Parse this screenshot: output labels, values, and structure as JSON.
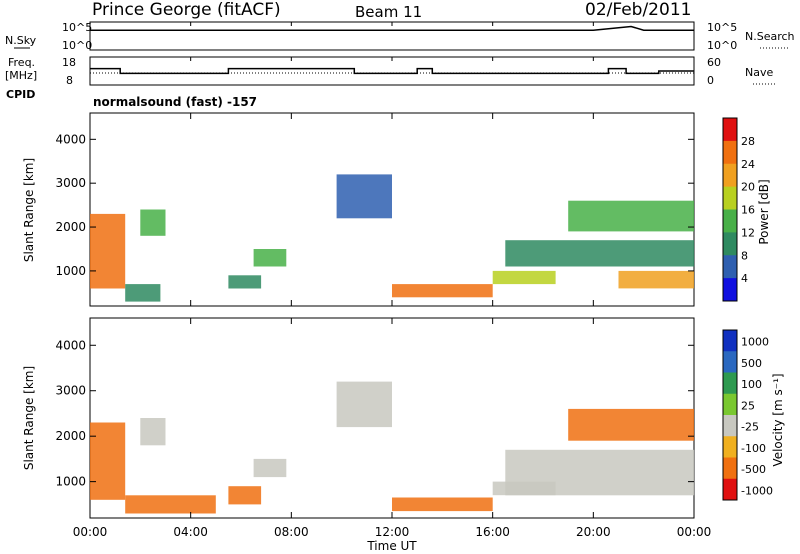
{
  "header": {
    "station": "Prince George (fitACF)",
    "beam": "Beam 11",
    "date": "02/Feb/2011"
  },
  "colors": {
    "power_scale": [
      "#1010e0",
      "#2e5fb0",
      "#2e8a60",
      "#48b048",
      "#b8d020",
      "#f0a020",
      "#f07010",
      "#e01010"
    ],
    "velocity_scale": [
      "#1030c0",
      "#2a68c0",
      "#2e9a50",
      "#7ac830",
      "#c8c8c0",
      "#f0b020",
      "#f07010",
      "#e01010"
    ]
  },
  "labels": {
    "nsky": "N.Sky",
    "nsearch": "N.Search",
    "freq": "Freq.",
    "mhz": "[MHz]",
    "nave": "Nave",
    "cpid": "CPID",
    "mode": "normalsound (fast) -157",
    "time_axis": "Time UT"
  },
  "chart_data": [
    {
      "type": "line",
      "title": "N.Sky / N.Search",
      "ylabel_left": "N.Sky",
      "ylabel_right": "N.Search",
      "yticks_left": [
        "10^5",
        "10^0"
      ],
      "yticks_right": [
        "10^5",
        "10^0"
      ],
      "series": [
        {
          "name": "N.Sky",
          "x": [
            0,
            2,
            4,
            6,
            8,
            10,
            12,
            14,
            16,
            18,
            20,
            21.5,
            22,
            24
          ],
          "y": [
            5000,
            5000,
            5000,
            5000,
            5000,
            5000,
            5000,
            5000,
            5000,
            5000,
            5000,
            30000,
            5000,
            5000
          ]
        }
      ]
    },
    {
      "type": "line",
      "title": "Freq / Nave",
      "ylabel": "Freq. [MHz]",
      "ylabel_right": "Nave",
      "yticks_left": [
        "18",
        "8"
      ],
      "yticks_right": [
        "60",
        "0"
      ],
      "ylim": [
        8,
        18
      ],
      "series": [
        {
          "name": "Freq.",
          "x": [
            0,
            1.2,
            1.2,
            5.5,
            5.5,
            10.5,
            10.5,
            13.0,
            13.0,
            13.6,
            13.6,
            20.6,
            20.6,
            21.3,
            21.3,
            22.6,
            22.6,
            24
          ],
          "y": [
            14,
            14,
            12,
            12,
            14,
            14,
            12,
            12,
            14,
            14,
            12,
            12,
            14,
            14,
            12,
            12,
            13,
            13
          ]
        },
        {
          "name": "Nave",
          "x": [
            0,
            24
          ],
          "y": [
            25,
            25
          ]
        }
      ]
    },
    {
      "type": "heatmap",
      "quantity": "Power",
      "unit": "dB",
      "colorbar_ticks": [
        "4",
        "8",
        "12",
        "16",
        "20",
        "24",
        "28"
      ],
      "colorbar_label": "Power [dB]",
      "x": [
        "00:00",
        "04:00",
        "08:00",
        "12:00",
        "16:00",
        "20:00",
        "00:00"
      ],
      "ylabel": "Slant Range [km]",
      "yticks": [
        "1000",
        "2000",
        "3000",
        "4000"
      ],
      "ylim": [
        200,
        4600
      ],
      "xlim": [
        0,
        24
      ],
      "bands": [
        {
          "t": [
            0,
            1.4
          ],
          "r": [
            600,
            2300
          ],
          "value": 26
        },
        {
          "t": [
            1.4,
            2.8
          ],
          "r": [
            300,
            700
          ],
          "value": 8
        },
        {
          "t": [
            2.0,
            3.0
          ],
          "r": [
            1800,
            2400
          ],
          "value": 12
        },
        {
          "t": [
            5.5,
            6.8
          ],
          "r": [
            600,
            900
          ],
          "value": 10
        },
        {
          "t": [
            6.5,
            7.8
          ],
          "r": [
            1100,
            1500
          ],
          "value": 12
        },
        {
          "t": [
            9.8,
            12.0
          ],
          "r": [
            2200,
            3200
          ],
          "value": 6
        },
        {
          "t": [
            12.0,
            16.0
          ],
          "r": [
            400,
            700
          ],
          "value": 24
        },
        {
          "t": [
            16.0,
            18.5
          ],
          "r": [
            700,
            1000
          ],
          "value": 18
        },
        {
          "t": [
            16.5,
            24.0
          ],
          "r": [
            1100,
            1700
          ],
          "value": 8
        },
        {
          "t": [
            19.0,
            24.0
          ],
          "r": [
            1900,
            2600
          ],
          "value": 14
        },
        {
          "t": [
            21.0,
            24.0
          ],
          "r": [
            600,
            1000
          ],
          "value": 20
        }
      ]
    },
    {
      "type": "heatmap",
      "quantity": "Velocity",
      "unit": "m s-1",
      "colorbar_ticks": [
        "1000",
        "500",
        "100",
        "25",
        "-25",
        "-100",
        "-500",
        "-1000"
      ],
      "colorbar_label": "Velocity [m s⁻¹]",
      "x": [
        "00:00",
        "04:00",
        "08:00",
        "12:00",
        "16:00",
        "20:00",
        "00:00"
      ],
      "ylabel": "Slant Range [km]",
      "yticks": [
        "1000",
        "2000",
        "3000",
        "4000"
      ],
      "ylim": [
        200,
        4600
      ],
      "xlim": [
        0,
        24
      ],
      "bands": [
        {
          "t": [
            0,
            1.4
          ],
          "r": [
            600,
            2300
          ],
          "value": -300
        },
        {
          "t": [
            1.4,
            5.0
          ],
          "r": [
            300,
            700
          ],
          "value": -150
        },
        {
          "t": [
            2.0,
            3.0
          ],
          "r": [
            1800,
            2400
          ],
          "value": 0
        },
        {
          "t": [
            5.5,
            6.8
          ],
          "r": [
            500,
            900
          ],
          "value": -400
        },
        {
          "t": [
            6.5,
            7.8
          ],
          "r": [
            1100,
            1500
          ],
          "value": 0
        },
        {
          "t": [
            9.8,
            12.0
          ],
          "r": [
            2200,
            3200
          ],
          "value": 0
        },
        {
          "t": [
            12.0,
            16.0
          ],
          "r": [
            350,
            650
          ],
          "value": -150
        },
        {
          "t": [
            16.0,
            18.5
          ],
          "r": [
            700,
            1000
          ],
          "value": 0
        },
        {
          "t": [
            16.5,
            24.0
          ],
          "r": [
            700,
            1700
          ],
          "value": 0
        },
        {
          "t": [
            19.0,
            24.0
          ],
          "r": [
            1900,
            2600
          ],
          "value": -400
        }
      ]
    }
  ]
}
